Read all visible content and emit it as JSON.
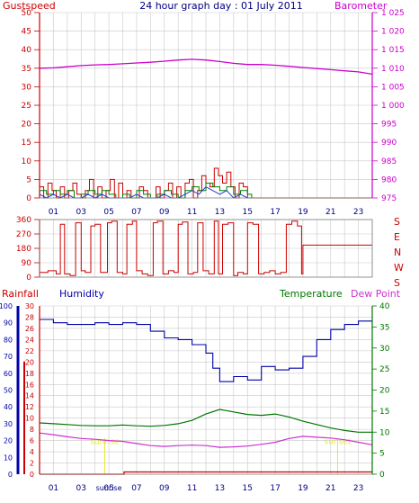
{
  "title": "24 hour graph day : 01 July 2011",
  "colors": {
    "gust": "#cc0000",
    "gust_label": "#cc0000",
    "wind_avg": "#1f3fcf",
    "wind_green": "#008000",
    "barometer": "#cc00cc",
    "direction": "#cc0000",
    "rainfall": "#cc0000",
    "humidity": "#0000aa",
    "temperature": "#007700",
    "dewpoint": "#cc33cc",
    "grid": "#c8c8c8",
    "axis": "#7f7f7f",
    "sun_marker": "#e8e830"
  },
  "chart_data": [
    {
      "type": "line",
      "id": "wind-baro",
      "title": "24 hour graph day : 01 July 2011",
      "left_label": "Gustspeed",
      "right_label": "Barometer",
      "hours_labeled": [
        "01",
        "03",
        "05",
        "07",
        "09",
        "11",
        "13",
        "15",
        "17",
        "19",
        "21",
        "23"
      ],
      "ylim_left": [
        0,
        50
      ],
      "yticks_left": [
        "0",
        "5",
        "10",
        "15",
        "20",
        "25",
        "30",
        "35",
        "40",
        "45",
        "50"
      ],
      "ylim_right": [
        975,
        1025
      ],
      "yticks_right": [
        "975",
        "980",
        "985",
        "990",
        "995",
        "1 000",
        "1 005",
        "1 010",
        "1 015",
        "1 020",
        "1 025"
      ],
      "grid": true,
      "series": [
        {
          "name": "Gustspeed",
          "axis": "left",
          "x": [
            0,
            0.3,
            0.6,
            0.9,
            1.2,
            1.5,
            1.8,
            2.1,
            2.4,
            2.7,
            3.0,
            3.3,
            3.6,
            3.9,
            4.2,
            4.5,
            4.8,
            5.1,
            5.4,
            5.7,
            6.0,
            6.3,
            6.6,
            6.9,
            7.2,
            7.5,
            7.8,
            8.1,
            8.4,
            8.7,
            9.0,
            9.3,
            9.6,
            9.9,
            10.2,
            10.5,
            10.8,
            11.1,
            11.4,
            11.7,
            12.0,
            12.3,
            12.6,
            12.9,
            13.2,
            13.5,
            13.8,
            14.1,
            14.4,
            14.7,
            15.0,
            15.3,
            24
          ],
          "y": [
            3,
            0,
            4,
            2,
            0,
            3,
            0,
            2,
            4,
            1,
            0,
            2,
            5,
            0,
            3,
            0,
            2,
            5,
            0,
            4,
            0,
            2,
            0,
            0,
            3,
            2,
            0,
            0,
            3,
            0,
            2,
            4,
            0,
            3,
            0,
            4,
            5,
            0,
            2,
            6,
            4,
            3,
            8,
            6,
            4,
            7,
            3,
            0,
            4,
            3,
            0,
            0,
            0
          ]
        },
        {
          "name": "Wind average",
          "axis": "left",
          "x": [
            0,
            0.5,
            1.0,
            1.5,
            2.0,
            2.5,
            3.0,
            3.5,
            4.0,
            4.5,
            5.0,
            5.5,
            6.0,
            6.5,
            7.0,
            7.5,
            8.0,
            8.5,
            9.0,
            9.5,
            10.0,
            10.5,
            11.0,
            11.5,
            12.0,
            12.5,
            13.0,
            13.5,
            14.0,
            14.5,
            15.0,
            15.3
          ],
          "y": [
            2,
            1,
            2,
            1,
            2,
            0,
            1,
            2,
            1,
            2,
            1,
            0,
            1,
            0,
            2,
            1,
            0,
            1,
            2,
            1,
            0,
            2,
            3,
            2,
            4,
            3,
            2,
            3,
            1,
            2,
            1,
            0
          ]
        },
        {
          "name": "Barometer",
          "axis": "right",
          "x": [
            0,
            1,
            2,
            3,
            4,
            5,
            6,
            7,
            8,
            9,
            10,
            11,
            12,
            13,
            14,
            15,
            16,
            17,
            18,
            19,
            20,
            21,
            22,
            23,
            24
          ],
          "y": [
            1010.0,
            1010.1,
            1010.4,
            1010.7,
            1010.9,
            1011.0,
            1011.2,
            1011.4,
            1011.6,
            1011.9,
            1012.2,
            1012.4,
            1012.2,
            1011.8,
            1011.3,
            1011.0,
            1011.0,
            1010.8,
            1010.5,
            1010.2,
            1009.9,
            1009.6,
            1009.3,
            1009.0,
            1008.4
          ]
        }
      ]
    },
    {
      "type": "line",
      "id": "direction",
      "ylim": [
        0,
        360
      ],
      "yticks": [
        "0",
        "90",
        "180",
        "270",
        "360"
      ],
      "right_letters": [
        "S",
        "E",
        "N",
        "W",
        "S"
      ],
      "grid": true,
      "series": [
        {
          "name": "Direction",
          "x": [
            0,
            0.6,
            1.2,
            1.5,
            1.8,
            2.2,
            2.6,
            3.0,
            3.3,
            3.7,
            4.0,
            4.4,
            4.9,
            5.2,
            5.6,
            6.0,
            6.3,
            6.7,
            7.0,
            7.4,
            7.8,
            8.2,
            8.5,
            8.9,
            9.3,
            9.7,
            10.0,
            10.3,
            10.7,
            11.1,
            11.4,
            11.8,
            12.2,
            12.6,
            12.9,
            13.2,
            13.6,
            14.0,
            14.3,
            14.7,
            15.0,
            15.4,
            15.8,
            16.2,
            16.6,
            17.0,
            17.4,
            17.8,
            18.2,
            18.6,
            18.9,
            19.0,
            24
          ],
          "y": [
            30,
            40,
            20,
            330,
            20,
            10,
            340,
            40,
            30,
            320,
            330,
            30,
            340,
            350,
            30,
            20,
            330,
            350,
            40,
            20,
            10,
            340,
            350,
            20,
            40,
            30,
            330,
            345,
            20,
            30,
            340,
            40,
            20,
            350,
            20,
            330,
            340,
            10,
            30,
            20,
            340,
            330,
            20,
            30,
            40,
            20,
            30,
            330,
            350,
            320,
            20,
            200,
            200
          ]
        }
      ]
    },
    {
      "type": "line",
      "id": "temp-hum",
      "left_labels": [
        "Rainfall",
        "Humidity"
      ],
      "right_labels": [
        "Temperature",
        "Dew Point"
      ],
      "ylim_rain": [
        0,
        30
      ],
      "yticks_rain": [
        "0",
        "2",
        "4",
        "6",
        "8",
        "10",
        "12",
        "14",
        "16",
        "18",
        "20",
        "22",
        "24",
        "26",
        "28",
        "30"
      ],
      "ylim_humidity": [
        0,
        100
      ],
      "yticks_humidity": [
        "0",
        "10",
        "20",
        "30",
        "40",
        "50",
        "60",
        "70",
        "80",
        "90",
        "100"
      ],
      "ylim_temp": [
        0,
        40
      ],
      "yticks_temp": [
        "0",
        "5",
        "10",
        "15",
        "20",
        "25",
        "30",
        "35",
        "40"
      ],
      "grid": true,
      "markers": [
        {
          "label": "sunrise",
          "x": 4.7
        },
        {
          "label": "sunset",
          "x": 21.5
        }
      ],
      "sunrise_bottom_label": "sunrise",
      "series": [
        {
          "name": "Humidity",
          "axis": "humidity",
          "x": [
            0,
            1,
            2,
            3,
            4,
            5,
            6,
            7,
            8,
            9,
            10,
            11,
            12,
            12.5,
            13,
            14,
            15,
            16,
            17,
            18,
            19,
            20,
            21,
            22,
            23,
            24
          ],
          "y": [
            92,
            90,
            89,
            89,
            90,
            89,
            90,
            89,
            85,
            81,
            80,
            77,
            72,
            63,
            55,
            58,
            56,
            64,
            62,
            63,
            70,
            80,
            86,
            89,
            91,
            91
          ]
        },
        {
          "name": "Rainfall",
          "axis": "rain",
          "x": [
            0,
            1,
            2,
            3,
            4,
            5,
            6,
            6.1,
            24
          ],
          "y": [
            0,
            0,
            0,
            0,
            0,
            0,
            0,
            0.4,
            0.4
          ]
        },
        {
          "name": "Temperature",
          "axis": "temp",
          "x": [
            0,
            1,
            2,
            3,
            4,
            5,
            6,
            7,
            8,
            9,
            10,
            11,
            12,
            13,
            14,
            15,
            16,
            17,
            18,
            19,
            20,
            21,
            22,
            23,
            24
          ],
          "y": [
            12.2,
            12.0,
            11.8,
            11.6,
            11.5,
            11.5,
            11.7,
            11.5,
            11.4,
            11.6,
            12.0,
            12.8,
            14.3,
            15.4,
            14.8,
            14.2,
            14.0,
            14.3,
            13.6,
            12.6,
            11.8,
            11.0,
            10.4,
            10.0,
            10.0
          ]
        },
        {
          "name": "Dew Point",
          "axis": "temp",
          "x": [
            0,
            1,
            2,
            3,
            4,
            5,
            6,
            7,
            8,
            9,
            10,
            11,
            12,
            13,
            14,
            15,
            16,
            17,
            18,
            19,
            20,
            21,
            22,
            23,
            24
          ],
          "y": [
            9.8,
            9.4,
            8.9,
            8.5,
            8.3,
            8.0,
            7.8,
            7.3,
            6.8,
            6.6,
            6.8,
            6.9,
            6.8,
            6.4,
            6.5,
            6.7,
            7.1,
            7.6,
            8.5,
            9.0,
            8.8,
            8.6,
            8.2,
            7.6,
            7.0
          ]
        }
      ]
    }
  ]
}
